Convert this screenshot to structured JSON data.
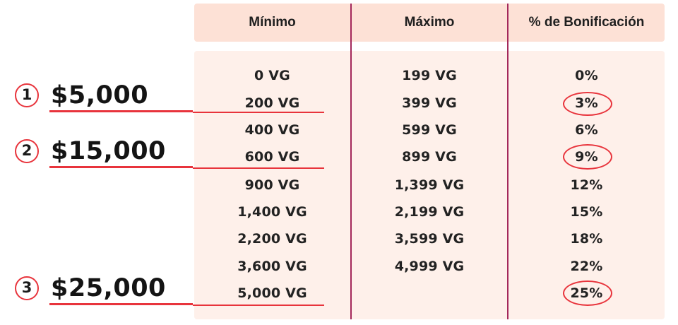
{
  "table": {
    "headers": [
      "Mínimo",
      "Máximo",
      "% de Bonificación"
    ],
    "rows": [
      [
        "0 VG",
        "199 VG",
        "0%"
      ],
      [
        "200 VG",
        "399 VG",
        "3%"
      ],
      [
        "400 VG",
        "599 VG",
        "6%"
      ],
      [
        "600 VG",
        "899 VG",
        "9%"
      ],
      [
        "900 VG",
        "1,399 VG",
        "12%"
      ],
      [
        "1,400 VG",
        "2,199 VG",
        "15%"
      ],
      [
        "2,200 VG",
        "3,599 VG",
        "18%"
      ],
      [
        "3,600 VG",
        "4,999 VG",
        "22%"
      ],
      [
        "5,000 VG",
        "",
        "25%"
      ]
    ],
    "highlighted_rows": [
      1,
      3,
      8
    ]
  },
  "markers": [
    {
      "number": "1",
      "amount": "$5,000"
    },
    {
      "number": "2",
      "amount": "$15,000"
    },
    {
      "number": "3",
      "amount": "$25,000"
    }
  ],
  "colors": {
    "accent_red": "#e8343c",
    "divider": "#a3285b",
    "header_bg": "#fde1d6",
    "body_bg": "#fef0ea"
  }
}
